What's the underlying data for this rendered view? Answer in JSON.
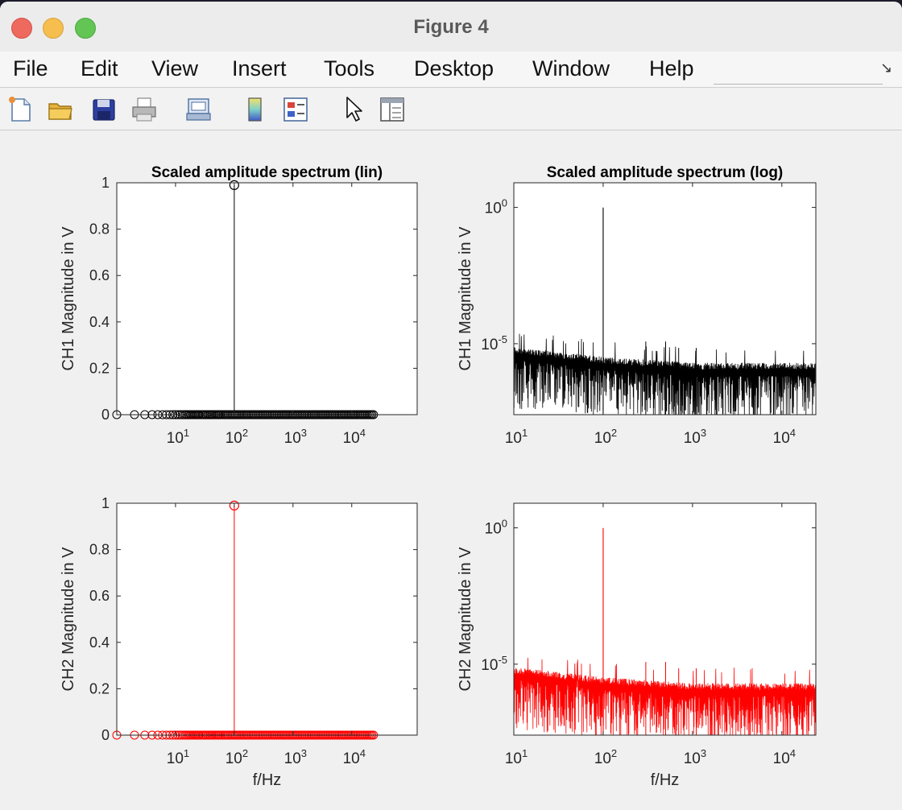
{
  "window": {
    "title": "Figure 4"
  },
  "menu": [
    "File",
    "Edit",
    "View",
    "Insert",
    "Tools",
    "Desktop",
    "Window",
    "Help"
  ],
  "toolbar": [
    "new-figure-icon",
    "open-file-icon",
    "save-icon",
    "print-icon",
    "print-preview-icon",
    "colorbar-icon",
    "legend-icon",
    "pointer-icon",
    "property-inspector-icon"
  ],
  "colors": {
    "ch1": "#000000",
    "ch2": "#ff0000"
  },
  "chart_data": [
    {
      "type": "scatter",
      "title": "Scaled amplitude spectrum (lin)",
      "ylabel": "CH1 Magnitude in V",
      "xlabel": "",
      "xscale": "log",
      "xticks": [
        10,
        100,
        1000,
        10000
      ],
      "ylim": [
        0,
        1
      ],
      "yticks": [
        0,
        0.2,
        0.4,
        0.6,
        0.8,
        1
      ],
      "series": [
        {
          "color": "#000000",
          "marker": "circle",
          "stem": true,
          "peak": {
            "x": 100,
            "y": 0.99
          },
          "baseline": 0,
          "x_range": [
            1,
            24000
          ]
        }
      ]
    },
    {
      "type": "line",
      "title": "Scaled amplitude spectrum (log)",
      "ylabel": "CH1 Magnitude in V",
      "xlabel": "",
      "xscale": "log",
      "yscale": "log",
      "xticks": [
        10,
        100,
        1000,
        10000
      ],
      "yticks": [
        1,
        1e-05
      ],
      "xlim": [
        10,
        24000
      ],
      "series": [
        {
          "color": "#000000",
          "peak": {
            "x": 100,
            "y": 0.99
          },
          "noise_floor": {
            "x": [
              10,
              100,
              1000,
              24000
            ],
            "y": [
              6e-06,
              2.5e-06,
              1.5e-06,
              1.5e-06
            ]
          },
          "harmonics": [
            {
              "x": 300,
              "y": 1.2e-05
            },
            {
              "x": 500,
              "y": 1.2e-05
            },
            {
              "x": 700,
              "y": 7e-06
            },
            {
              "x": 1100,
              "y": 7e-06
            }
          ]
        }
      ]
    },
    {
      "type": "scatter",
      "title": "",
      "ylabel": "CH2 Magnitude in V",
      "xlabel": "f/Hz",
      "xscale": "log",
      "xticks": [
        10,
        100,
        1000,
        10000
      ],
      "ylim": [
        0,
        1
      ],
      "yticks": [
        0,
        0.2,
        0.4,
        0.6,
        0.8,
        1
      ],
      "series": [
        {
          "color": "#ff0000",
          "marker": "circle",
          "stem": true,
          "peak": {
            "x": 100,
            "y": 0.99
          },
          "baseline": 0,
          "x_range": [
            1,
            24000
          ]
        }
      ]
    },
    {
      "type": "line",
      "title": "",
      "ylabel": "CH2 Magnitude in V",
      "xlabel": "f/Hz",
      "xscale": "log",
      "yscale": "log",
      "xticks": [
        10,
        100,
        1000,
        10000
      ],
      "yticks": [
        1,
        1e-05
      ],
      "xlim": [
        10,
        24000
      ],
      "series": [
        {
          "color": "#ff0000",
          "peak": {
            "x": 100,
            "y": 0.99
          },
          "noise_floor": {
            "x": [
              10,
              100,
              1000,
              24000
            ],
            "y": [
              6e-06,
              2.5e-06,
              1.5e-06,
              1.5e-06
            ]
          },
          "harmonics": [
            {
              "x": 300,
              "y": 1.2e-05
            },
            {
              "x": 500,
              "y": 1.2e-05
            },
            {
              "x": 700,
              "y": 7e-06
            },
            {
              "x": 1100,
              "y": 7e-06
            }
          ]
        }
      ]
    }
  ]
}
